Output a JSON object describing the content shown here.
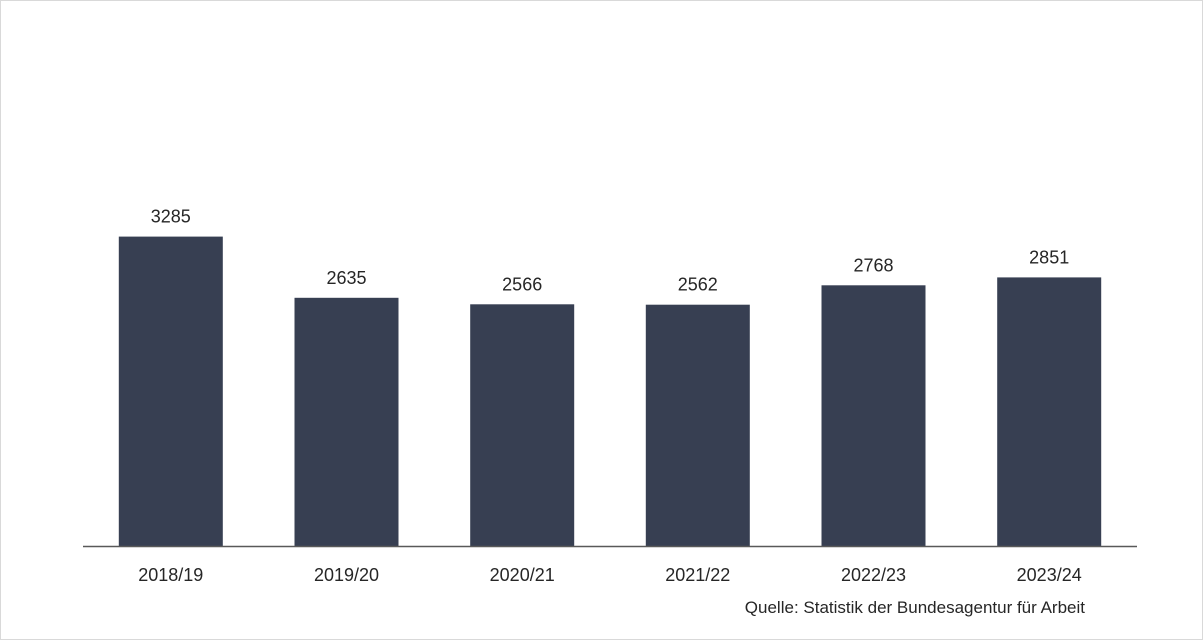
{
  "chart_data": {
    "type": "bar",
    "categories": [
      "2018/19",
      "2019/20",
      "2020/21",
      "2021/22",
      "2022/23",
      "2023/24"
    ],
    "values": [
      3285,
      2635,
      2566,
      2562,
      2768,
      2851
    ],
    "title": "",
    "xlabel": "",
    "ylabel": "",
    "ylim": [
      0,
      4000
    ],
    "grid": false,
    "legend": "none",
    "bar_color": "#373f52",
    "axis_color": "#595959",
    "data_labels": true
  },
  "source": "Quelle: Statistik der Bundesagentur für Arbeit"
}
